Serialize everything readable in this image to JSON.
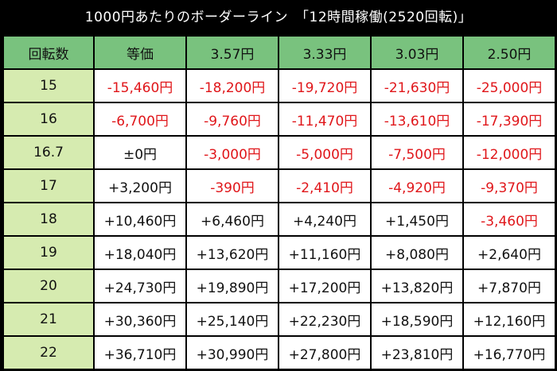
{
  "title": "1000円あたりのボーダーライン　「12時間稼働(2520回転)」",
  "headers": [
    "回転数",
    "等価",
    "3.57円",
    "3.33円",
    "3.03円",
    "2.50円"
  ],
  "rows": [
    {
      "label": "15",
      "cells": [
        "-15,460円",
        "-18,200円",
        "-19,720円",
        "-21,630円",
        "-25,000円"
      ]
    },
    {
      "label": "16",
      "cells": [
        "-6,700円",
        "-9,760円",
        "-11,470円",
        "-13,610円",
        "-17,390円"
      ]
    },
    {
      "label": "16.7",
      "cells": [
        "±0円",
        "-3,000円",
        "-5,000円",
        "-7,500円",
        "-12,000円"
      ]
    },
    {
      "label": "17",
      "cells": [
        "+3,200円",
        "-390円",
        "-2,410円",
        "-4,920円",
        "-9,370円"
      ]
    },
    {
      "label": "18",
      "cells": [
        "+10,460円",
        "+6,460円",
        "+4,240円",
        "+1,450円",
        "-3,460円"
      ]
    },
    {
      "label": "19",
      "cells": [
        "+18,040円",
        "+13,620円",
        "+11,160円",
        "+8,080円",
        "+2,640円"
      ]
    },
    {
      "label": "20",
      "cells": [
        "+24,730円",
        "+19,890円",
        "+17,200円",
        "+13,820円",
        "+7,870円"
      ]
    },
    {
      "label": "21",
      "cells": [
        "+30,360円",
        "+25,140円",
        "+22,230円",
        "+18,590円",
        "+12,160円"
      ]
    },
    {
      "label": "22",
      "cells": [
        "+36,710円",
        "+30,990円",
        "+27,800円",
        "+23,810円",
        "+16,770円"
      ]
    }
  ],
  "colors": {
    "negative": "#e0161a",
    "positive": "#111111",
    "header_bg": "#79c27e",
    "row_label_bg": "#d6ebb0",
    "background": "#000000"
  }
}
